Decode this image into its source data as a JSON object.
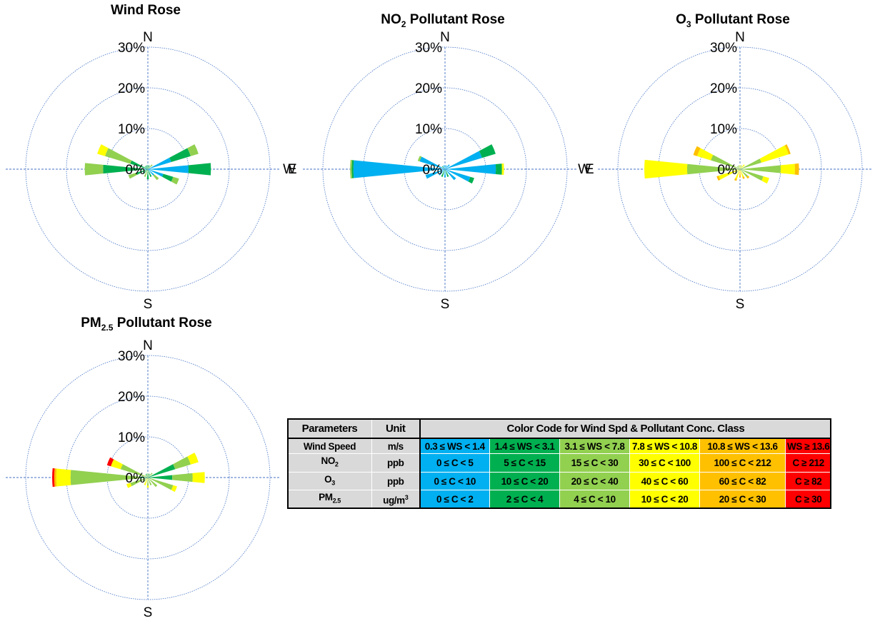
{
  "chart_data": [
    {
      "type": "wind_rose",
      "title": "Wind Rose",
      "radial_ticks": [
        "0%",
        "10%",
        "20%",
        "30%"
      ],
      "rmax_percent": 30,
      "directions": [
        "N",
        "E",
        "S",
        "W"
      ],
      "sectors": [
        {
          "dir_deg": 292.5,
          "bands": [
            {
              "bin": 2,
              "value": 4.5
            },
            {
              "bin": 3,
              "value": 6.5
            },
            {
              "bin": 4,
              "value": 2.0
            }
          ]
        },
        {
          "dir_deg": 270,
          "bands": [
            {
              "bin": 1,
              "value": 1.0
            },
            {
              "bin": 2,
              "value": 10.0
            },
            {
              "bin": 3,
              "value": 4.5
            }
          ]
        },
        {
          "dir_deg": 247.5,
          "bands": [
            {
              "bin": 2,
              "value": 3.0
            },
            {
              "bin": 3,
              "value": 2.0
            }
          ]
        },
        {
          "dir_deg": 67.5,
          "bands": [
            {
              "bin": 1,
              "value": 6.0
            },
            {
              "bin": 2,
              "value": 5.0
            },
            {
              "bin": 3,
              "value": 2.0
            }
          ]
        },
        {
          "dir_deg": 90,
          "bands": [
            {
              "bin": 1,
              "value": 10.0
            },
            {
              "bin": 2,
              "value": 5.5
            }
          ]
        },
        {
          "dir_deg": 112.5,
          "bands": [
            {
              "bin": 1,
              "value": 4.0
            },
            {
              "bin": 2,
              "value": 2.5
            },
            {
              "bin": 3,
              "value": 1.5
            }
          ]
        },
        {
          "dir_deg": 135,
          "bands": [
            {
              "bin": 1,
              "value": 2.0
            },
            {
              "bin": 3,
              "value": 1.5
            }
          ]
        },
        {
          "dir_deg": 157.5,
          "bands": [
            {
              "bin": 2,
              "value": 2.0
            }
          ]
        },
        {
          "dir_deg": 180,
          "bands": [
            {
              "bin": 2,
              "value": 2.5
            }
          ]
        },
        {
          "dir_deg": 202.5,
          "bands": [
            {
              "bin": 3,
              "value": 2.0
            }
          ]
        },
        {
          "dir_deg": 225,
          "bands": [
            {
              "bin": 2,
              "value": 1.5
            }
          ]
        },
        {
          "dir_deg": 315,
          "bands": [
            {
              "bin": 2,
              "value": 1.0
            }
          ]
        },
        {
          "dir_deg": 337.5,
          "bands": [
            {
              "bin": 2,
              "value": 1.0
            }
          ]
        },
        {
          "dir_deg": 0,
          "bands": [
            {
              "bin": 2,
              "value": 1.0
            }
          ]
        },
        {
          "dir_deg": 22.5,
          "bands": [
            {
              "bin": 2,
              "value": 1.0
            }
          ]
        },
        {
          "dir_deg": 45,
          "bands": [
            {
              "bin": 3,
              "value": 1.5
            }
          ]
        }
      ]
    },
    {
      "type": "pollutant_rose",
      "title_main": "NO",
      "title_sub": "2",
      "title_rest": " Pollutant Rose",
      "radial_ticks": [
        "0%",
        "10%",
        "20%",
        "30%"
      ],
      "rmax_percent": 30,
      "directions": [
        "N",
        "E",
        "S",
        "W"
      ],
      "sectors": [
        {
          "dir_deg": 292.5,
          "bands": [
            {
              "bin": 1,
              "value": 6.5
            },
            {
              "bin": 3,
              "value": 0.5
            }
          ]
        },
        {
          "dir_deg": 270,
          "bands": [
            {
              "bin": 1,
              "value": 22.5
            },
            {
              "bin": 2,
              "value": 0.4
            },
            {
              "bin": 3,
              "value": 0.4
            }
          ]
        },
        {
          "dir_deg": 247.5,
          "bands": [
            {
              "bin": 1,
              "value": 5.0
            }
          ]
        },
        {
          "dir_deg": 67.5,
          "bands": [
            {
              "bin": 1,
              "value": 9.5
            },
            {
              "bin": 2,
              "value": 3.5
            }
          ]
        },
        {
          "dir_deg": 90,
          "bands": [
            {
              "bin": 1,
              "value": 12.5
            },
            {
              "bin": 2,
              "value": 1.5
            },
            {
              "bin": 4,
              "value": 0.5
            }
          ]
        },
        {
          "dir_deg": 112.5,
          "bands": [
            {
              "bin": 1,
              "value": 6.5
            },
            {
              "bin": 2,
              "value": 1.0
            }
          ]
        },
        {
          "dir_deg": 135,
          "bands": [
            {
              "bin": 1,
              "value": 3.5
            }
          ]
        },
        {
          "dir_deg": 157.5,
          "bands": [
            {
              "bin": 2,
              "value": 2.0
            }
          ]
        },
        {
          "dir_deg": 180,
          "bands": [
            {
              "bin": 1,
              "value": 2.0
            }
          ]
        },
        {
          "dir_deg": 202.5,
          "bands": [
            {
              "bin": 2,
              "value": 2.0
            }
          ]
        },
        {
          "dir_deg": 225,
          "bands": [
            {
              "bin": 1,
              "value": 2.0
            }
          ]
        },
        {
          "dir_deg": 315,
          "bands": [
            {
              "bin": 2,
              "value": 1.0
            }
          ]
        },
        {
          "dir_deg": 337.5,
          "bands": [
            {
              "bin": 1,
              "value": 1.0
            }
          ]
        },
        {
          "dir_deg": 0,
          "bands": [
            {
              "bin": 1,
              "value": 1.0
            }
          ]
        },
        {
          "dir_deg": 22.5,
          "bands": [
            {
              "bin": 1,
              "value": 1.0
            }
          ]
        },
        {
          "dir_deg": 45,
          "bands": [
            {
              "bin": 1,
              "value": 1.5
            }
          ]
        }
      ]
    },
    {
      "type": "pollutant_rose",
      "title_main": "O",
      "title_sub": "3",
      "title_rest": " Pollutant Rose",
      "radial_ticks": [
        "0%",
        "10%",
        "20%",
        "30%"
      ],
      "rmax_percent": 30,
      "directions": [
        "N",
        "E",
        "S",
        "W"
      ],
      "sectors": [
        {
          "dir_deg": 292.5,
          "bands": [
            {
              "bin": 3,
              "value": 7.5
            },
            {
              "bin": 4,
              "value": 3.5
            },
            {
              "bin": 5,
              "value": 1.0
            }
          ]
        },
        {
          "dir_deg": 270,
          "bands": [
            {
              "bin": 3,
              "value": 13.0
            },
            {
              "bin": 4,
              "value": 10.5
            }
          ]
        },
        {
          "dir_deg": 247.5,
          "bands": [
            {
              "bin": 4,
              "value": 5.5
            },
            {
              "bin": 5,
              "value": 0.5
            }
          ]
        },
        {
          "dir_deg": 67.5,
          "bands": [
            {
              "bin": 3,
              "value": 5.5
            },
            {
              "bin": 4,
              "value": 7.0
            },
            {
              "bin": 5,
              "value": 0.5
            }
          ]
        },
        {
          "dir_deg": 90,
          "bands": [
            {
              "bin": 3,
              "value": 10.0
            },
            {
              "bin": 4,
              "value": 3.5
            },
            {
              "bin": 5,
              "value": 1.0
            }
          ]
        },
        {
          "dir_deg": 112.5,
          "bands": [
            {
              "bin": 3,
              "value": 6.0
            },
            {
              "bin": 4,
              "value": 1.5
            }
          ]
        },
        {
          "dir_deg": 135,
          "bands": [
            {
              "bin": 3,
              "value": 2.5
            },
            {
              "bin": 5,
              "value": 0.5
            }
          ]
        },
        {
          "dir_deg": 157.5,
          "bands": [
            {
              "bin": 4,
              "value": 2.0
            },
            {
              "bin": 5,
              "value": 0.5
            }
          ]
        },
        {
          "dir_deg": 180,
          "bands": [
            {
              "bin": 5,
              "value": 2.0
            }
          ]
        },
        {
          "dir_deg": 202.5,
          "bands": [
            {
              "bin": 4,
              "value": 2.5
            },
            {
              "bin": 5,
              "value": 0.5
            }
          ]
        },
        {
          "dir_deg": 225,
          "bands": [
            {
              "bin": 3,
              "value": 1.5
            }
          ]
        },
        {
          "dir_deg": 315,
          "bands": [
            {
              "bin": 3,
              "value": 1.0
            }
          ]
        },
        {
          "dir_deg": 337.5,
          "bands": [
            {
              "bin": 3,
              "value": 1.0
            }
          ]
        },
        {
          "dir_deg": 0,
          "bands": [
            {
              "bin": 4,
              "value": 1.0
            }
          ]
        },
        {
          "dir_deg": 22.5,
          "bands": [
            {
              "bin": 3,
              "value": 1.0
            }
          ]
        },
        {
          "dir_deg": 45,
          "bands": [
            {
              "bin": 4,
              "value": 1.5
            }
          ]
        }
      ]
    },
    {
      "type": "pollutant_rose",
      "title_main": "PM",
      "title_sub": "2.5",
      "title_rest": " Pollutant Rose",
      "radial_ticks": [
        "0%",
        "10%",
        "20%",
        "30%"
      ],
      "rmax_percent": 30,
      "directions": [
        "N",
        "E",
        "S",
        "W"
      ],
      "sectors": [
        {
          "dir_deg": 292.5,
          "bands": [
            {
              "bin": 3,
              "value": 7.0
            },
            {
              "bin": 4,
              "value": 2.5
            },
            {
              "bin": 6,
              "value": 1.0
            }
          ]
        },
        {
          "dir_deg": 270,
          "bands": [
            {
              "bin": 2,
              "value": 2.0
            },
            {
              "bin": 3,
              "value": 17.0
            },
            {
              "bin": 4,
              "value": 3.5
            },
            {
              "bin": 5,
              "value": 0.5
            },
            {
              "bin": 6,
              "value": 0.5
            }
          ]
        },
        {
          "dir_deg": 247.5,
          "bands": [
            {
              "bin": 3,
              "value": 4.5
            },
            {
              "bin": 4,
              "value": 1.0
            }
          ]
        },
        {
          "dir_deg": 67.5,
          "bands": [
            {
              "bin": 2,
              "value": 7.0
            },
            {
              "bin": 3,
              "value": 4.0
            },
            {
              "bin": 4,
              "value": 2.0
            }
          ]
        },
        {
          "dir_deg": 90,
          "bands": [
            {
              "bin": 2,
              "value": 6.0
            },
            {
              "bin": 3,
              "value": 5.0
            },
            {
              "bin": 4,
              "value": 3.0
            }
          ]
        },
        {
          "dir_deg": 112.5,
          "bands": [
            {
              "bin": 3,
              "value": 6.5
            },
            {
              "bin": 4,
              "value": 1.0
            }
          ]
        },
        {
          "dir_deg": 135,
          "bands": [
            {
              "bin": 3,
              "value": 3.0
            }
          ]
        },
        {
          "dir_deg": 157.5,
          "bands": [
            {
              "bin": 3,
              "value": 2.0
            }
          ]
        },
        {
          "dir_deg": 180,
          "bands": [
            {
              "bin": 3,
              "value": 2.0
            },
            {
              "bin": 4,
              "value": 0.5
            }
          ]
        },
        {
          "dir_deg": 202.5,
          "bands": [
            {
              "bin": 4,
              "value": 2.0
            }
          ]
        },
        {
          "dir_deg": 225,
          "bands": [
            {
              "bin": 3,
              "value": 1.5
            }
          ]
        },
        {
          "dir_deg": 315,
          "bands": [
            {
              "bin": 3,
              "value": 1.0
            }
          ]
        },
        {
          "dir_deg": 337.5,
          "bands": [
            {
              "bin": 2,
              "value": 1.0
            }
          ]
        },
        {
          "dir_deg": 0,
          "bands": [
            {
              "bin": 3,
              "value": 1.0
            }
          ]
        },
        {
          "dir_deg": 22.5,
          "bands": [
            {
              "bin": 2,
              "value": 1.0
            }
          ]
        },
        {
          "dir_deg": 45,
          "bands": [
            {
              "bin": 3,
              "value": 1.5
            }
          ]
        }
      ]
    }
  ],
  "colors": {
    "bin1": "#00b0f0",
    "bin2": "#00b050",
    "bin3": "#92d050",
    "bin4": "#ffff00",
    "bin5": "#ffc000",
    "bin6": "#ff0000",
    "grid": "#4472c4"
  },
  "legend": {
    "headers": {
      "parameters": "Parameters",
      "unit": "Unit",
      "code": "Color Code for Wind Spd & Pollutant Conc. Class"
    },
    "rows": [
      {
        "param": "Wind Speed",
        "param_sub": "",
        "unit": "m/s",
        "unit_sup": "",
        "cells": [
          "0.3 ≤ WS < 1.4",
          "1.4 ≤ WS < 3.1",
          "3.1 ≤ WS < 7.8",
          "7.8 ≤ WS < 10.8",
          "10.8 ≤ WS < 13.6",
          "WS ≥ 13.6"
        ]
      },
      {
        "param": "NO",
        "param_sub": "2",
        "unit": "ppb",
        "unit_sup": "",
        "cells": [
          "0 ≤ C < 5",
          "5 ≤ C < 15",
          "15 ≤ C < 30",
          "30 ≤ C < 100",
          "100 ≤ C < 212",
          "C ≥ 212"
        ]
      },
      {
        "param": "O",
        "param_sub": "3",
        "unit": "ppb",
        "unit_sup": "",
        "cells": [
          "0 ≤ C < 10",
          "10 ≤ C < 20",
          "20 ≤ C < 40",
          "40 ≤ C < 60",
          "60 ≤ C < 82",
          "C ≥ 82"
        ]
      },
      {
        "param": "PM",
        "param_sub": "2.5",
        "unit": "ug/m",
        "unit_sup": "3",
        "cells": [
          "0 ≤ C < 2",
          "2 ≤ C < 4",
          "4 ≤ C < 10",
          "10 ≤ C < 20",
          "20 ≤ C < 30",
          "C ≥ 30"
        ]
      }
    ]
  }
}
